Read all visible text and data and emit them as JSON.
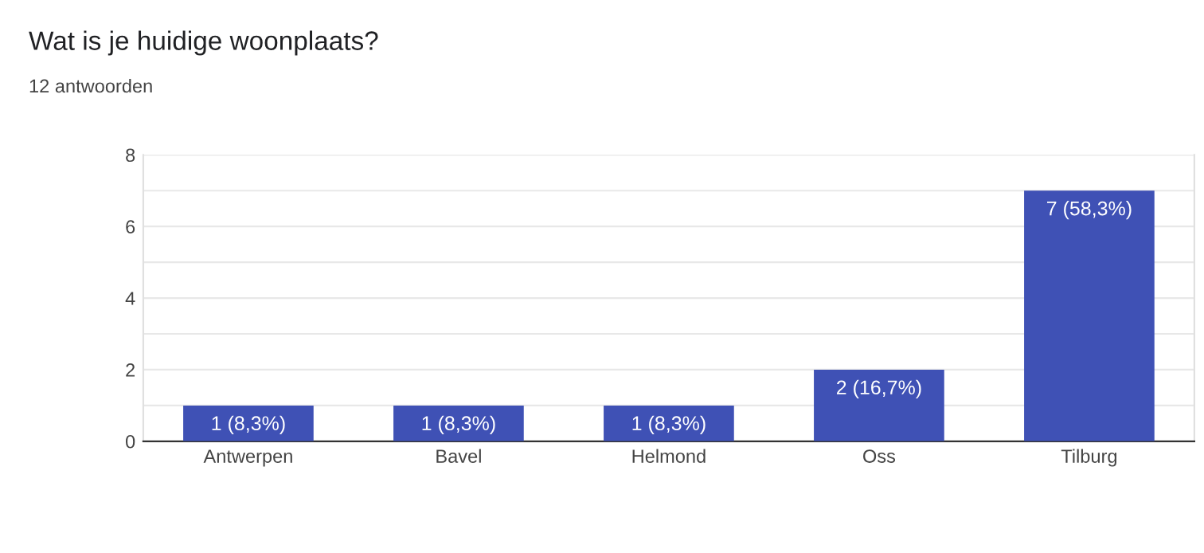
{
  "chart_data": {
    "type": "bar",
    "title": "Wat is je huidige woonplaats?",
    "subtitle": "12 antwoorden",
    "categories": [
      "Antwerpen",
      "Bavel",
      "Helmond",
      "Oss",
      "Tilburg"
    ],
    "values": [
      1,
      1,
      1,
      2,
      7
    ],
    "value_labels": [
      "1 (8,3%)",
      "1 (8,3%)",
      "1 (8,3%)",
      "2 (16,7%)",
      "7 (58,3%)"
    ],
    "color": "#3f51b5",
    "ylim": [
      0,
      8
    ],
    "yticks": [
      0,
      {
        "value": 1,
        "label": null
      },
      2,
      {
        "value": 3,
        "label": null
      },
      4,
      {
        "value": 5,
        "label": null
      },
      6,
      {
        "value": 7,
        "label": null
      },
      8
    ],
    "grid": "y"
  }
}
